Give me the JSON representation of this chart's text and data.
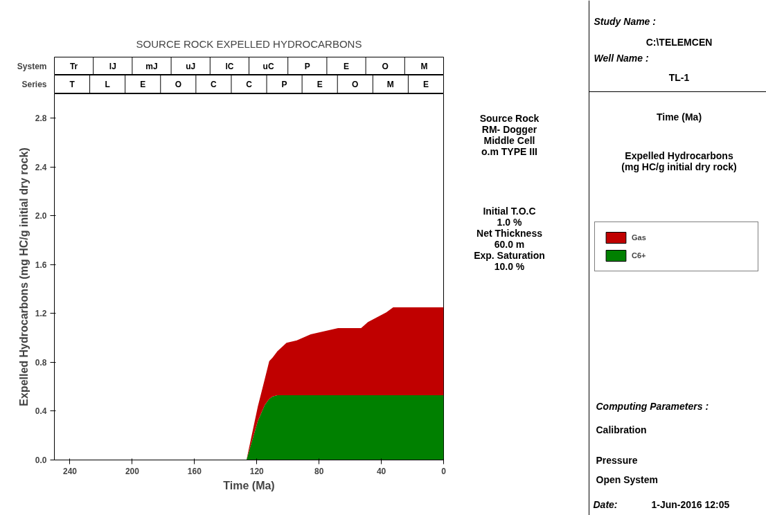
{
  "chart_data": [
    {
      "type": "area",
      "title": "SOURCE ROCK EXPELLED HYDROCARBONS",
      "xlabel": "Time (Ma)",
      "ylabel": "Expelled Hydrocarbons (mg HC/g initial dry rock)",
      "stacked": true,
      "x": [
        126.6,
        119.3,
        114.9,
        112,
        109.8,
        106.8,
        100.9,
        94.3,
        85.4,
        67.8,
        53,
        48.6,
        36.8,
        32.4,
        0
      ],
      "series": [
        {
          "name": "C6+",
          "color": "#008000",
          "values": [
            0,
            0.32,
            0.45,
            0.5,
            0.52,
            0.53,
            0.53,
            0.53,
            0.53,
            0.53,
            0.53,
            0.53,
            0.53,
            0.53,
            0.53
          ]
        },
        {
          "name": "Gas",
          "color": "#c00000",
          "values": [
            0,
            0.12,
            0.21,
            0.31,
            0.32,
            0.36,
            0.43,
            0.45,
            0.5,
            0.55,
            0.55,
            0.6,
            0.68,
            0.72,
            0.72
          ]
        }
      ],
      "xlim": [
        250,
        0
      ],
      "xticks": [
        240,
        200,
        160,
        120,
        80,
        40,
        0
      ],
      "ylim": [
        0,
        3.0
      ],
      "yticks": [
        {
          "value": 0,
          "label": "0.0"
        },
        {
          "value": 0.4,
          "label": "0.4"
        },
        {
          "value": 0.8,
          "label": "0.8"
        },
        {
          "value": 1.2,
          "label": "1.2"
        },
        {
          "value": 1.6,
          "label": "1.6"
        },
        {
          "value": 2.0,
          "label": "2.0"
        },
        {
          "value": 2.4,
          "label": "2.4"
        },
        {
          "value": 2.8,
          "label": "2.8"
        }
      ],
      "grid": false,
      "legend": "right",
      "annotations": [
        "Study Name :",
        "C:\\TELEMCEN",
        "Well Name :",
        "TL-1",
        "Source Rock\nRM- Dogger\nMiddle Cell\no.m TYPE III",
        "Initial T.O.C\n1.0 %\nNet Thickness\n60.0 m\nExp. Saturation\n10.0 %",
        "Time (Ma)",
        "Expelled Hydrocarbons\n(mg HC/g initial dry rock)",
        "Computing Parameters :",
        "Calibration",
        "Pressure",
        "Open System",
        "Date:",
        "1-Jun-2016  12:05"
      ]
    },
    {
      "type": "other",
      "title": "System",
      "categories": [
        "Tr",
        "lJ",
        "mJ",
        "uJ",
        "lC",
        "uC",
        "P",
        "E",
        "O",
        "M"
      ]
    },
    {
      "type": "other",
      "title": "Series",
      "categories": [
        "T",
        "L",
        "E",
        "O",
        "C",
        "C",
        "P",
        "E",
        "O",
        "M",
        "E"
      ]
    }
  ]
}
